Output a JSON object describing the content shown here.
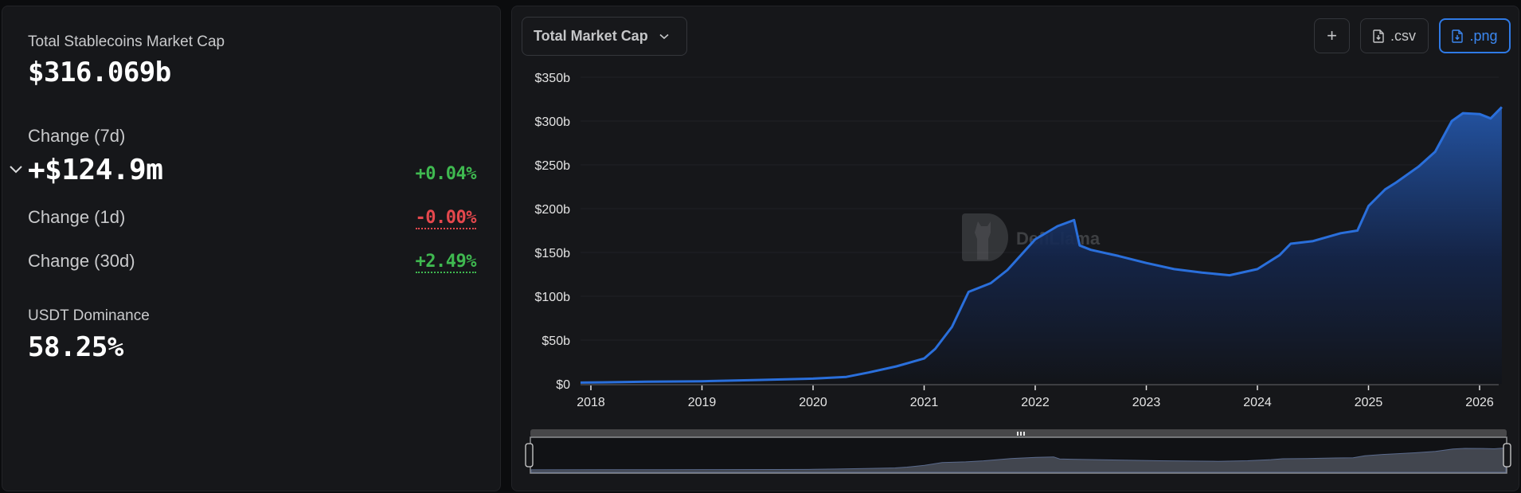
{
  "stats": {
    "title": "Total Stablecoins Market Cap",
    "total_value": "$316.069b",
    "change_7d_label": "Change (7d)",
    "change_7d_value": "+$124.9m",
    "change_7d_pct": "+0.04%",
    "change_1d_label": "Change (1d)",
    "change_1d_pct": "-0.00%",
    "change_30d_label": "Change (30d)",
    "change_30d_pct": "+2.49%",
    "dominance_label": "USDT Dominance",
    "dominance_value": "58.25%",
    "expand_icon": "chevron-down-icon"
  },
  "toolbar": {
    "metric_select": "Total Market Cap",
    "add_label": "+",
    "csv_label": ".csv",
    "png_label": ".png"
  },
  "watermark": "DefiLlama",
  "colors": {
    "positive": "#3fb950",
    "negative": "#e5484d",
    "line": "#2a6fdb",
    "accent": "#2f7ae5"
  },
  "chart_data": {
    "type": "area",
    "title": "Total Market Cap",
    "xlabel": "",
    "ylabel": "",
    "ylim": [
      0,
      350
    ],
    "y_ticks": [
      "$0",
      "$50b",
      "$100b",
      "$150b",
      "$200b",
      "$250b",
      "$300b",
      "$350b"
    ],
    "x_ticks": [
      "2018",
      "2019",
      "2020",
      "2021",
      "2022",
      "2023",
      "2024",
      "2025",
      "2026"
    ],
    "grid": true,
    "legend": "none",
    "series": [
      {
        "name": "Total Stablecoins Market Cap ($b)",
        "x": [
          2017.9,
          2018.5,
          2019.0,
          2019.5,
          2020.0,
          2020.3,
          2020.5,
          2020.75,
          2021.0,
          2021.1,
          2021.25,
          2021.4,
          2021.6,
          2021.75,
          2022.0,
          2022.2,
          2022.35,
          2022.4,
          2022.5,
          2022.75,
          2023.0,
          2023.25,
          2023.5,
          2023.75,
          2024.0,
          2024.2,
          2024.3,
          2024.5,
          2024.75,
          2024.9,
          2025.0,
          2025.15,
          2025.25,
          2025.45,
          2025.6,
          2025.75,
          2025.85,
          2026.0,
          2026.1,
          2026.2
        ],
        "values": [
          1.5,
          2.5,
          3,
          4.5,
          6,
          8,
          13,
          20,
          29,
          40,
          65,
          105,
          115,
          130,
          165,
          180,
          187,
          158,
          153,
          146,
          138,
          131,
          127,
          124,
          131,
          147,
          160,
          163,
          172,
          175,
          203,
          222,
          230,
          248,
          265,
          300,
          309,
          308,
          303,
          316
        ]
      }
    ]
  }
}
